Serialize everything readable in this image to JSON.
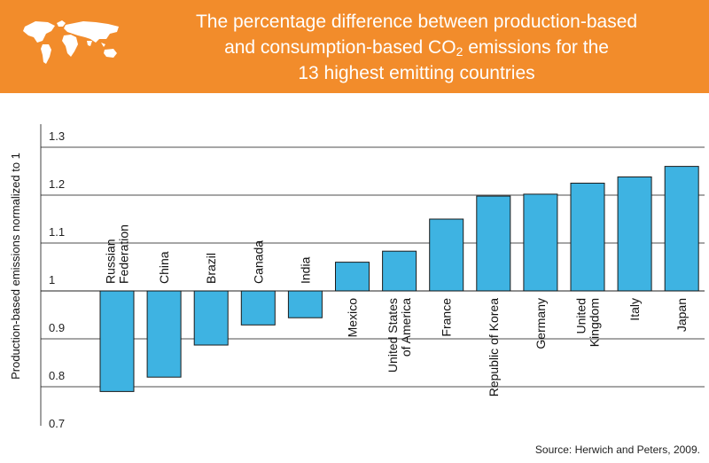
{
  "header": {
    "title_line1": "The percentage difference between production-based",
    "title_line2_pre": "and consumption-based CO",
    "title_line2_sub": "2",
    "title_line2_post": " emissions for the",
    "title_line3": "13 highest emitting countries"
  },
  "source": "Source: Herwich and Peters, 2009.",
  "colors": {
    "header": "#F28C2B",
    "bar": "#3EB3E2",
    "bar_stroke": "#1b1b1b",
    "map": "#ffffff"
  },
  "chart_data": {
    "type": "bar",
    "title": "The percentage difference between production-based and consumption-based CO2 emissions for the 13 highest emitting countries",
    "xlabel": "",
    "ylabel": "Production-based emissions normalized to 1",
    "ylim": [
      0.7,
      1.3
    ],
    "baseline": 1,
    "yticks": [
      0.7,
      0.8,
      0.9,
      1,
      1.1,
      1.2,
      1.3
    ],
    "ytick_labels": [
      "0.7",
      "0.8",
      "0.9",
      "1",
      "1.1",
      "1.2",
      "1.3"
    ],
    "grid": true,
    "categories": [
      [
        "Russian",
        "Federation"
      ],
      [
        "China"
      ],
      [
        "Brazil"
      ],
      [
        "Canada"
      ],
      [
        "India"
      ],
      [
        "Mexico"
      ],
      [
        "United States",
        "of America"
      ],
      [
        "France"
      ],
      [
        "Republic of Korea"
      ],
      [
        "Germany"
      ],
      [
        "United",
        "Kingdom"
      ],
      [
        "Italy"
      ],
      [
        "Japan"
      ]
    ],
    "values": [
      0.79,
      0.82,
      0.887,
      0.929,
      0.944,
      1.06,
      1.083,
      1.15,
      1.198,
      1.202,
      1.225,
      1.238,
      1.26
    ]
  }
}
